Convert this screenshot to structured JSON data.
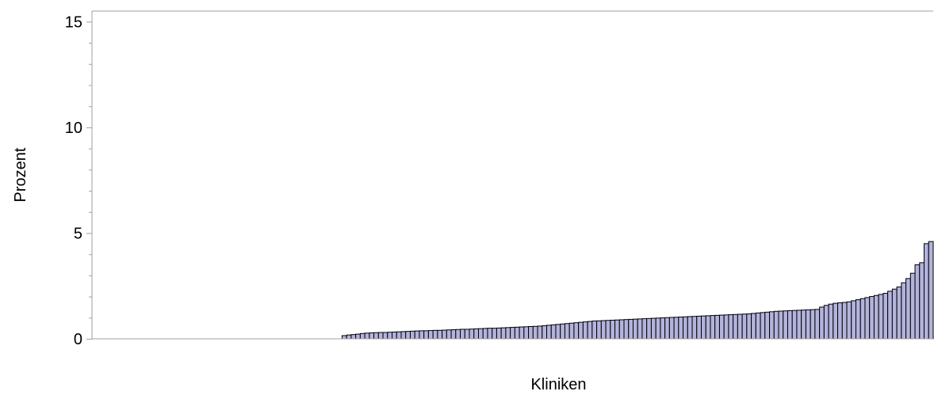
{
  "colors": {
    "bar_fill": "#b3b3dd",
    "bar_stroke": "#000000",
    "axis": "#a0a0a0",
    "text": "#000000",
    "background": "#ffffff"
  },
  "chart_data": {
    "type": "bar",
    "xlabel": "Kliniken",
    "ylabel": "Prozent",
    "ylim": [
      0,
      15.5
    ],
    "yticks": [
      0,
      5,
      10,
      15
    ],
    "ytick_labels": [
      "0",
      "5",
      "10",
      "15"
    ],
    "grid": false,
    "legend": "none",
    "zero_count": 55,
    "values": [
      0.15,
      0.18,
      0.2,
      0.22,
      0.25,
      0.27,
      0.28,
      0.29,
      0.3,
      0.3,
      0.31,
      0.32,
      0.33,
      0.34,
      0.35,
      0.36,
      0.37,
      0.38,
      0.38,
      0.39,
      0.4,
      0.4,
      0.41,
      0.42,
      0.43,
      0.44,
      0.45,
      0.45,
      0.46,
      0.47,
      0.48,
      0.49,
      0.5,
      0.5,
      0.51,
      0.52,
      0.53,
      0.54,
      0.55,
      0.56,
      0.57,
      0.58,
      0.59,
      0.6,
      0.62,
      0.64,
      0.66,
      0.68,
      0.7,
      0.72,
      0.74,
      0.76,
      0.78,
      0.8,
      0.82,
      0.84,
      0.85,
      0.86,
      0.87,
      0.88,
      0.89,
      0.9,
      0.91,
      0.92,
      0.93,
      0.94,
      0.95,
      0.96,
      0.97,
      0.98,
      0.99,
      1.0,
      1.01,
      1.02,
      1.03,
      1.04,
      1.05,
      1.06,
      1.07,
      1.08,
      1.09,
      1.1,
      1.11,
      1.12,
      1.13,
      1.14,
      1.15,
      1.16,
      1.17,
      1.18,
      1.2,
      1.22,
      1.24,
      1.26,
      1.28,
      1.3,
      1.31,
      1.32,
      1.33,
      1.34,
      1.35,
      1.36,
      1.37,
      1.38,
      1.39,
      1.5,
      1.58,
      1.64,
      1.68,
      1.7,
      1.72,
      1.75,
      1.8,
      1.85,
      1.9,
      1.95,
      2.0,
      2.05,
      2.1,
      2.15,
      2.25,
      2.35,
      2.45,
      2.65,
      2.85,
      3.1,
      3.5,
      3.6,
      4.5,
      4.6
    ]
  }
}
